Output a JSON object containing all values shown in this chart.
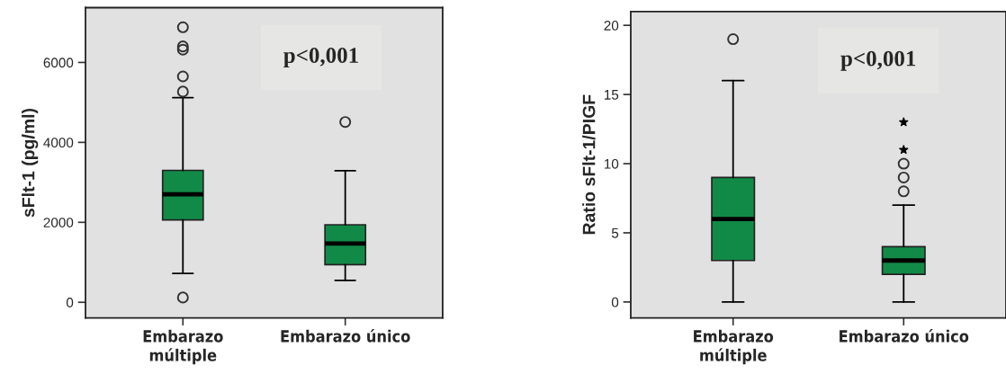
{
  "chart_data": [
    {
      "type": "box",
      "ylabel": "sFlt-1 (pg/ml)",
      "categories": [
        "Embarazo\nmúltiple",
        "Embarazo único"
      ],
      "color": "#128a47",
      "boxes": [
        {
          "low": 720,
          "q1": 2060,
          "median": 2700,
          "q3": 3300,
          "high": 5120,
          "outliers": [
            6880,
            6400,
            6320,
            5650,
            5270,
            120
          ]
        },
        {
          "low": 550,
          "q1": 940,
          "median": 1470,
          "q3": 1940,
          "high": 3290,
          "outliers": [
            4510
          ]
        }
      ],
      "ylim": [
        -390,
        7370
      ],
      "yticks": [
        0,
        2000,
        4000,
        6000
      ],
      "grid": false,
      "annotations": [
        "p<0,001"
      ]
    },
    {
      "type": "box",
      "ylabel": "Ratio sFlt-1/PIGF",
      "categories": [
        "Embarazo\nmúltiple",
        "Embarazo único"
      ],
      "color": "#128a47",
      "boxes": [
        {
          "low": 0,
          "q1": 3,
          "median": 6,
          "q3": 9,
          "high": 16,
          "outliers": [
            19
          ]
        },
        {
          "low": 0,
          "q1": 2,
          "median": 3,
          "q3": 4,
          "high": 7,
          "outliers": [
            8,
            9,
            10
          ]
        }
      ],
      "series": [
        {
          "type": "scatter",
          "marker": "star",
          "color": "#000000",
          "x": [
            "Embarazo único",
            "Embarazo único"
          ],
          "values": [
            11,
            13
          ]
        }
      ],
      "ylim": [
        -1.15,
        21
      ],
      "yticks": [
        0,
        5,
        10,
        15,
        20
      ],
      "grid": false,
      "annotations": [
        "p<0,001"
      ]
    }
  ]
}
